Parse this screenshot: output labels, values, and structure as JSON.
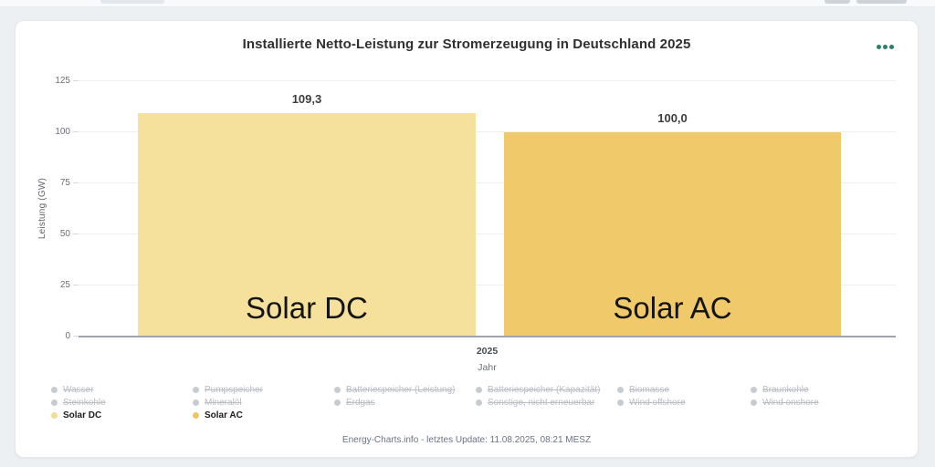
{
  "page": {
    "title": "Installierte Netto-Leistung zur Stromerzeugung in Deutschland 2025",
    "footer": "Energy-Charts.info - letztes Update: 11.08.2025, 08:21 MESZ"
  },
  "chart_data": {
    "type": "bar",
    "title": "Installierte Netto-Leistung zur Stromerzeugung in Deutschland 2025",
    "xlabel": "Jahr",
    "ylabel": "Leistung (GW)",
    "categories": [
      "2025"
    ],
    "ylim": [
      0,
      125
    ],
    "yticks": [
      0,
      25,
      50,
      75,
      100,
      125
    ],
    "grid": true,
    "legend_position": "bottom",
    "series": [
      {
        "name": "Solar DC",
        "value": 109.3,
        "value_label": "109,3",
        "color": "#f5e19c"
      },
      {
        "name": "Solar AC",
        "value": 100.0,
        "value_label": "100,0",
        "color": "#f0ca6a"
      }
    ]
  },
  "legend": {
    "columns": [
      {
        "items": [
          {
            "label": "Wasser",
            "active": false
          },
          {
            "label": "Steinkohle",
            "active": false
          },
          {
            "label": "Solar DC",
            "active": true,
            "color": "#f3dd92"
          }
        ]
      },
      {
        "items": [
          {
            "label": "Pumpspeicher",
            "active": false
          },
          {
            "label": "Mineralöl",
            "active": false
          },
          {
            "label": "Solar AC",
            "active": true,
            "color": "#edc75f"
          }
        ]
      },
      {
        "items": [
          {
            "label": "Batteriespeicher (Leistung)",
            "active": false
          },
          {
            "label": "Erdgas",
            "active": false
          }
        ]
      },
      {
        "items": [
          {
            "label": "Batteriespeicher (Kapazität)",
            "active": false
          },
          {
            "label": "Sonstige, nicht erneuerbar",
            "active": false
          }
        ]
      },
      {
        "items": [
          {
            "label": "Biomasse",
            "active": false
          },
          {
            "label": "Wind offshore",
            "active": false
          }
        ]
      },
      {
        "items": [
          {
            "label": "Braunkohle",
            "active": false
          },
          {
            "label": "Wind onshore",
            "active": false
          }
        ]
      }
    ]
  },
  "icons": {
    "menu": "ellipsis-icon"
  },
  "colors": {
    "accent_green": "#2b8066",
    "bar_solar_dc": "#f5e19c",
    "bar_solar_ac": "#f0ca6a",
    "disabled_legend": "#b9bec4",
    "page_background": "#edf0f3"
  }
}
